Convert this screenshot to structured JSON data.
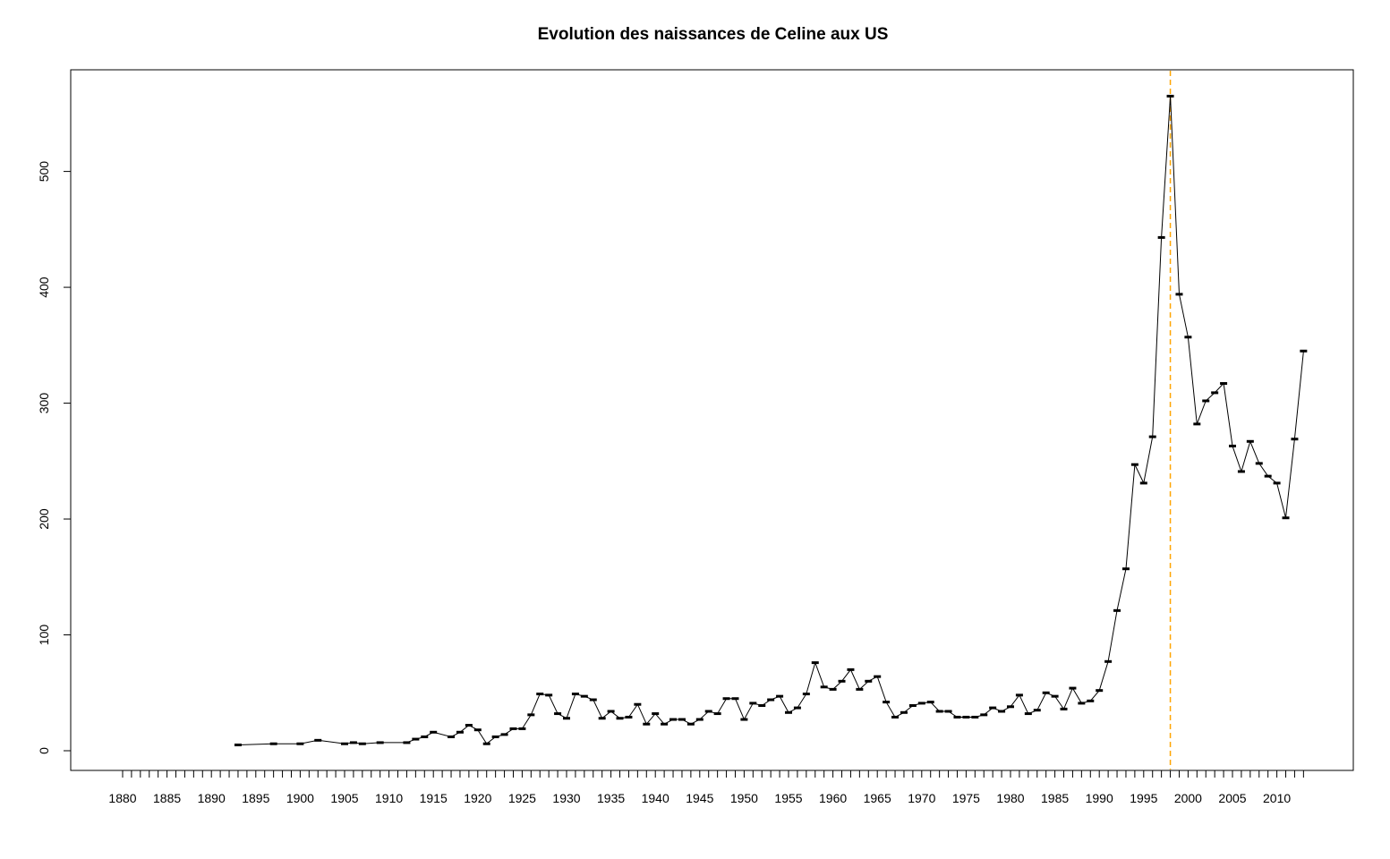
{
  "chart_data": {
    "type": "line",
    "title": "Evolution des naissances de Celine aux US",
    "xlabel": "",
    "ylabel": "",
    "xlim": [
      1880,
      2013
    ],
    "ylim": [
      0,
      565
    ],
    "x_tick_labels": [
      "1880",
      "1885",
      "1890",
      "1895",
      "1900",
      "1905",
      "1910",
      "1915",
      "1920",
      "1925",
      "1930",
      "1935",
      "1940",
      "1945",
      "1950",
      "1955",
      "1960",
      "1965",
      "1970",
      "1975",
      "1980",
      "1985",
      "1990",
      "1995",
      "2000",
      "2005",
      "2010"
    ],
    "y_tick_labels": [
      "0",
      "100",
      "200",
      "300",
      "400",
      "500"
    ],
    "y_tick_values": [
      0,
      100,
      200,
      300,
      400,
      500
    ],
    "grid": false,
    "line_color": "#000000",
    "reference_line": {
      "x": 1998,
      "color": "#ffa500",
      "style": "dashed"
    },
    "series": [
      {
        "x": [
          1893,
          1897,
          1900,
          1902,
          1905,
          1906,
          1907,
          1909,
          1912,
          1913,
          1914,
          1915,
          1917,
          1918,
          1919,
          1920,
          1921,
          1922,
          1923,
          1924,
          1925,
          1926,
          1927,
          1928,
          1929,
          1930,
          1931,
          1932,
          1933,
          1934,
          1935,
          1936,
          1937,
          1938,
          1939,
          1940,
          1941,
          1942,
          1943,
          1944,
          1945,
          1946,
          1947,
          1948,
          1949,
          1950,
          1951,
          1952,
          1953,
          1954,
          1955,
          1956,
          1957,
          1958,
          1959,
          1960,
          1961,
          1962,
          1963,
          1964,
          1965,
          1966,
          1967,
          1968,
          1969,
          1970,
          1971,
          1972,
          1973,
          1974,
          1975,
          1976,
          1977,
          1978,
          1979,
          1980,
          1981,
          1982,
          1983,
          1984,
          1985,
          1986,
          1987,
          1988,
          1989,
          1990,
          1991,
          1992,
          1993,
          1994,
          1995,
          1996,
          1997,
          1998,
          1999,
          2000,
          2001,
          2002,
          2003,
          2004,
          2005,
          2006,
          2007,
          2008,
          2009,
          2010,
          2011,
          2012,
          2013
        ],
        "values": [
          5,
          6,
          6,
          9,
          6,
          7,
          6,
          7,
          7,
          10,
          12,
          16,
          12,
          16,
          22,
          18,
          6,
          12,
          14,
          19,
          19,
          31,
          49,
          48,
          32,
          28,
          49,
          47,
          44,
          28,
          34,
          28,
          29,
          40,
          23,
          32,
          23,
          27,
          27,
          23,
          27,
          34,
          32,
          45,
          45,
          27,
          41,
          39,
          44,
          47,
          33,
          37,
          49,
          76,
          55,
          53,
          60,
          70,
          53,
          60,
          64,
          42,
          29,
          33,
          39,
          41,
          42,
          34,
          34,
          29,
          29,
          29,
          31,
          37,
          34,
          38,
          48,
          32,
          35,
          50,
          47,
          36,
          54,
          41,
          43,
          52,
          77,
          121,
          157,
          247,
          231,
          271,
          443,
          565,
          394,
          357,
          282,
          302,
          309,
          317,
          263,
          241,
          267,
          248,
          237,
          231,
          201,
          269,
          345
        ]
      }
    ]
  }
}
